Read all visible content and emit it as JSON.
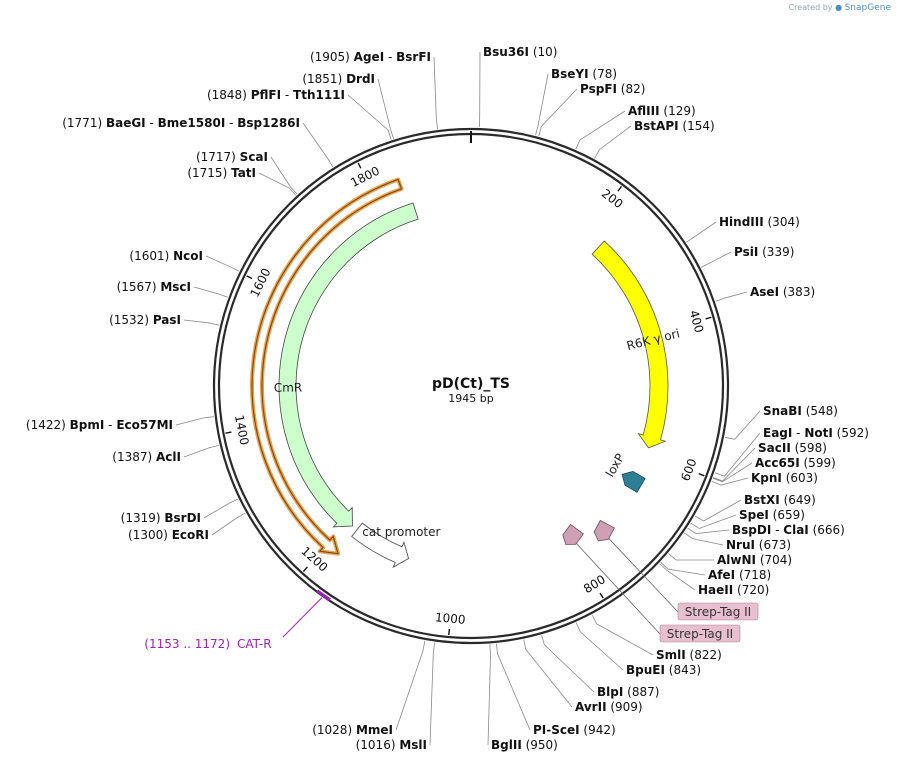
{
  "watermark": {
    "prefix": "Created by",
    "brand": "SnapGene"
  },
  "plasmid": {
    "name": "pD(Ct)_TS",
    "length_label": "1945 bp",
    "length": 1945
  },
  "colors": {
    "backbone": "#2a2a2a",
    "ori": "#ffff00",
    "cmr": "#ccffcc",
    "promoter": "#ffffff",
    "loxp": "#2e7f95",
    "strep": "#cf9fb6",
    "primer": "#a020c0",
    "cmr_outline": "#f0a050",
    "tag_bg": "#e8bfcf"
  },
  "ticks": [
    {
      "pos": 200,
      "label": "200"
    },
    {
      "pos": 400,
      "label": "400"
    },
    {
      "pos": 600,
      "label": "600"
    },
    {
      "pos": 800,
      "label": "800"
    },
    {
      "pos": 1000,
      "label": "1000"
    },
    {
      "pos": 1200,
      "label": "1200"
    },
    {
      "pos": 1400,
      "label": "1400"
    },
    {
      "pos": 1600,
      "label": "1600"
    },
    {
      "pos": 1800,
      "label": "1800"
    }
  ],
  "features": [
    {
      "id": "ori",
      "label": "R6K γ ori",
      "start": 230,
      "end": 590,
      "dir": "cw",
      "color": "#ffff00"
    },
    {
      "id": "cmr",
      "label": "CmR",
      "start": 1180,
      "end": 1840,
      "dir": "ccw",
      "color": "#ccffcc"
    },
    {
      "id": "promoter",
      "label": "cat promoter",
      "start": 1080,
      "end": 1180,
      "dir": "ccw",
      "color": "#ffffff"
    },
    {
      "id": "loxp",
      "label": "loxP",
      "pos": 650,
      "color": "#2e7f95"
    },
    {
      "id": "strep1",
      "label": "Strep-Tag II",
      "pos": 745,
      "color": "#cf9fb6"
    },
    {
      "id": "strep2",
      "label": "Strep-Tag II",
      "pos": 790,
      "color": "#cf9fb6"
    }
  ],
  "primer": {
    "label": "CAT-R",
    "range": "(1153 .. 1172)",
    "start": 1153,
    "end": 1172
  },
  "tags": [
    {
      "label": "Strep-Tag II"
    },
    {
      "label": "Strep-Tag II"
    }
  ],
  "sites": [
    {
      "names": [
        "Bsu36I"
      ],
      "pos": 10,
      "pos_label": "(10)"
    },
    {
      "names": [
        "BseYI"
      ],
      "pos": 78,
      "pos_label": "(78)"
    },
    {
      "names": [
        "PspFI"
      ],
      "pos": 82,
      "pos_label": "(82)"
    },
    {
      "names": [
        "AflIII"
      ],
      "pos": 129,
      "pos_label": "(129)"
    },
    {
      "names": [
        "BstAPI"
      ],
      "pos": 154,
      "pos_label": "(154)"
    },
    {
      "names": [
        "HindIII"
      ],
      "pos": 304,
      "pos_label": "(304)"
    },
    {
      "names": [
        "PsiI"
      ],
      "pos": 339,
      "pos_label": "(339)"
    },
    {
      "names": [
        "AseI"
      ],
      "pos": 383,
      "pos_label": "(383)"
    },
    {
      "names": [
        "SnaBI"
      ],
      "pos": 548,
      "pos_label": "(548)"
    },
    {
      "names": [
        "EagI",
        "NotI"
      ],
      "pos": 592,
      "pos_label": "(592)"
    },
    {
      "names": [
        "SacII"
      ],
      "pos": 598,
      "pos_label": "(598)"
    },
    {
      "names": [
        "Acc65I"
      ],
      "pos": 599,
      "pos_label": "(599)"
    },
    {
      "names": [
        "KpnI"
      ],
      "pos": 603,
      "pos_label": "(603)"
    },
    {
      "names": [
        "BstXI"
      ],
      "pos": 649,
      "pos_label": "(649)"
    },
    {
      "names": [
        "SpeI"
      ],
      "pos": 659,
      "pos_label": "(659)"
    },
    {
      "names": [
        "BspDI",
        "ClaI"
      ],
      "pos": 666,
      "pos_label": "(666)"
    },
    {
      "names": [
        "NruI"
      ],
      "pos": 673,
      "pos_label": "(673)"
    },
    {
      "names": [
        "AlwNI"
      ],
      "pos": 704,
      "pos_label": "(704)"
    },
    {
      "names": [
        "AfeI"
      ],
      "pos": 718,
      "pos_label": "(718)"
    },
    {
      "names": [
        "HaeII"
      ],
      "pos": 720,
      "pos_label": "(720)"
    },
    {
      "names": [
        "SmlI"
      ],
      "pos": 822,
      "pos_label": "(822)"
    },
    {
      "names": [
        "BpuEI"
      ],
      "pos": 843,
      "pos_label": "(843)"
    },
    {
      "names": [
        "BlpI"
      ],
      "pos": 887,
      "pos_label": "(887)"
    },
    {
      "names": [
        "AvrII"
      ],
      "pos": 909,
      "pos_label": "(909)"
    },
    {
      "names": [
        "PI-SceI"
      ],
      "pos": 942,
      "pos_label": "(942)"
    },
    {
      "names": [
        "BglII"
      ],
      "pos": 950,
      "pos_label": "(950)"
    },
    {
      "names": [
        "MslI"
      ],
      "pos": 1016,
      "pos_label": "(1016)"
    },
    {
      "names": [
        "MmeI"
      ],
      "pos": 1028,
      "pos_label": "(1028)"
    },
    {
      "names": [
        "EcoRI"
      ],
      "pos": 1300,
      "pos_label": "(1300)"
    },
    {
      "names": [
        "BsrDI"
      ],
      "pos": 1319,
      "pos_label": "(1319)"
    },
    {
      "names": [
        "AclI"
      ],
      "pos": 1387,
      "pos_label": "(1387)"
    },
    {
      "names": [
        "BpmI",
        "Eco57MI"
      ],
      "pos": 1422,
      "pos_label": "(1422)"
    },
    {
      "names": [
        "PasI"
      ],
      "pos": 1532,
      "pos_label": "(1532)"
    },
    {
      "names": [
        "MscI"
      ],
      "pos": 1567,
      "pos_label": "(1567)"
    },
    {
      "names": [
        "NcoI"
      ],
      "pos": 1601,
      "pos_label": "(1601)"
    },
    {
      "names": [
        "TatI"
      ],
      "pos": 1715,
      "pos_label": "(1715)"
    },
    {
      "names": [
        "ScaI"
      ],
      "pos": 1717,
      "pos_label": "(1717)"
    },
    {
      "names": [
        "BaeGI",
        "Bme1580I",
        "Bsp1286I"
      ],
      "pos": 1771,
      "pos_label": "(1771)"
    },
    {
      "names": [
        "PflFI",
        "Tth111I"
      ],
      "pos": 1848,
      "pos_label": "(1848)"
    },
    {
      "names": [
        "DrdI"
      ],
      "pos": 1851,
      "pos_label": "(1851)"
    },
    {
      "names": [
        "AgeI",
        "BsrFI"
      ],
      "pos": 1905,
      "pos_label": "(1905)"
    }
  ]
}
